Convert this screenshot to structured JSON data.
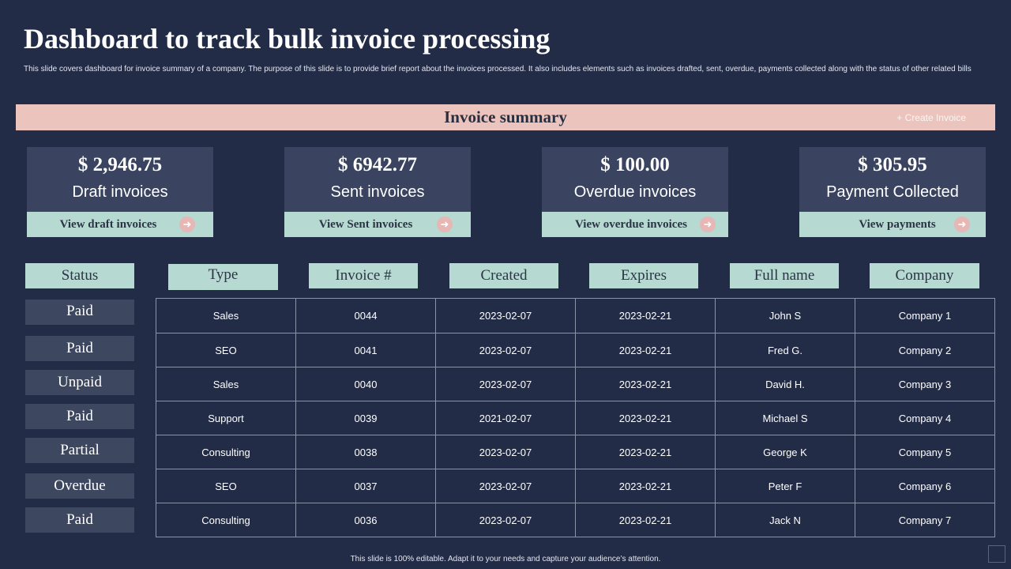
{
  "page": {
    "title": "Dashboard to track bulk invoice processing",
    "description": "This slide covers dashboard for invoice summary of a company. The purpose of this slide is to provide brief report about the invoices processed. It also includes elements  such as invoices drafted, sent, overdue, payments collected along  with the status of other related bills",
    "footer": "This slide is 100% editable.  Adapt it to your needs and capture your audience’s attention."
  },
  "banner": {
    "title": "Invoice summary",
    "create_label": "+ Create Invoice"
  },
  "cards": [
    {
      "amount": "$ 2,946.75",
      "label": "Draft invoices",
      "link": "View draft invoices",
      "icon": "arrow-right-icon"
    },
    {
      "amount": "$ 6942.77",
      "label": "Sent invoices",
      "link": "View Sent invoices",
      "icon": "arrow-right-icon"
    },
    {
      "amount": "$ 100.00",
      "label": "Overdue invoices",
      "link": "View overdue invoices",
      "icon": "arrow-right-icon"
    },
    {
      "amount": "$ 305.95",
      "label": "Payment Collected",
      "link": "View payments",
      "icon": "arrow-right-icon"
    }
  ],
  "table": {
    "status_header": "Status",
    "headers": [
      "Type",
      "Invoice #",
      "Created",
      "Expires",
      "Full name",
      "Company"
    ],
    "statuses": [
      "Paid",
      "Paid",
      "Unpaid",
      "Paid",
      "Partial",
      "Overdue",
      "Paid"
    ],
    "rows": [
      [
        "Sales",
        "0044",
        "2023-02-07",
        "2023-02-21",
        "John S",
        "Company 1"
      ],
      [
        "SEO",
        "0041",
        "2023-02-07",
        "2023-02-21",
        "Fred G.",
        "Company 2"
      ],
      [
        "Sales",
        "0040",
        "2023-02-07",
        "2023-02-21",
        "David  H.",
        "Company 3"
      ],
      [
        "Support",
        "0039",
        "2021-02-07",
        "2023-02-21",
        "Michael S",
        "Company 4"
      ],
      [
        "Consulting",
        "0038",
        "2023-02-07",
        "2023-02-21",
        "George  K",
        "Company 5"
      ],
      [
        "SEO",
        "0037",
        "2023-02-07",
        "2023-02-21",
        "Peter F",
        "Company 6"
      ],
      [
        "Consulting",
        "0036",
        "2023-02-07",
        "2023-02-21",
        "Jack N",
        "Company 7"
      ]
    ]
  },
  "colors": {
    "background": "#232c47",
    "banner": "#ebc4bd",
    "accent": "#b6d9d2",
    "card": "#3a4460",
    "status_cell": "#3e4760"
  }
}
